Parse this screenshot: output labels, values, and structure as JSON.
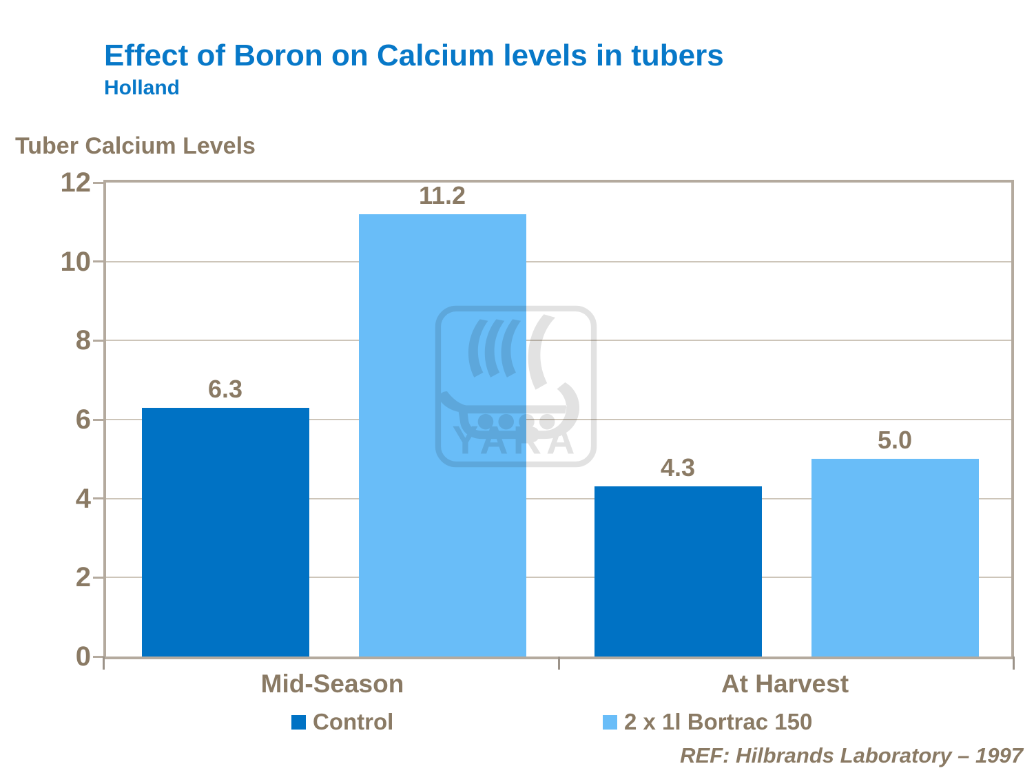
{
  "slide": {
    "title": "Effect of Boron on Calcium levels in tubers",
    "subtitle": "Holland",
    "footer_ref": "REF: Hilbrands Laboratory – 1997"
  },
  "watermark": {
    "label": "YARA"
  },
  "colors": {
    "title_blue": "#0778C8",
    "text_brown": "#8A7A64",
    "control_blue": "#0072C4",
    "bortrac_blue": "#69BDF8",
    "grid_line": "#CDC5B9",
    "axis_border": "#B4AA9E",
    "tick_gray": "#9C9389",
    "watermark_gray": "#E2E2E2"
  },
  "chart_data": {
    "type": "bar",
    "title": "Tuber Calcium Levels",
    "categories": [
      "Mid-Season",
      "At Harvest"
    ],
    "series": [
      {
        "name": "Control",
        "color": "#0072C4",
        "values": [
          6.3,
          4.3
        ]
      },
      {
        "name": "2 x 1l Bortrac 150",
        "color": "#69BDF8",
        "values": [
          11.2,
          5.0
        ]
      }
    ],
    "ylim": [
      0,
      12
    ],
    "yticks": [
      0,
      2,
      4,
      6,
      8,
      10,
      12
    ],
    "grid": true,
    "legend_position": "bottom",
    "value_labels": true,
    "xlabel": "",
    "ylabel": "Tuber Calcium Levels"
  }
}
